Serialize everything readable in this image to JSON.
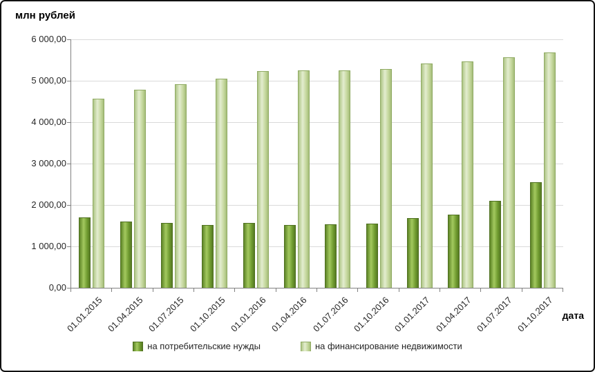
{
  "chart_data": {
    "type": "bar",
    "title": "",
    "ylabel": "млн рублей",
    "xlabel": "дата",
    "categories": [
      "01.01.2015",
      "01.04.2015",
      "01.07.2015",
      "01.10.2015",
      "01.01.2016",
      "01.04.2016",
      "01.07.2016",
      "01.10.2016",
      "01.01.2017",
      "01.04.2017",
      "01.07.2017",
      "01.10.2017"
    ],
    "series": [
      {
        "name": "на потребительские нужды",
        "color": "#76a033",
        "border_color": "#4e701f",
        "values": [
          1700,
          1600,
          1560,
          1520,
          1570,
          1520,
          1540,
          1550,
          1680,
          1770,
          2100,
          2550
        ]
      },
      {
        "name": "на финансирование недвижимости",
        "color": "#c3d69b",
        "border_color": "#8faa62",
        "values": [
          4570,
          4780,
          4920,
          5050,
          5230,
          5250,
          5250,
          5290,
          5420,
          5470,
          5570,
          5690
        ]
      }
    ],
    "ylim": [
      0,
      6000
    ],
    "ytick_values": [
      0,
      1000,
      2000,
      3000,
      4000,
      5000,
      6000
    ],
    "ytick_labels": [
      "0,00",
      "1 000,00",
      "2 000,00",
      "3 000,00",
      "4 000,00",
      "5 000,00",
      "6 000,00"
    ],
    "grid": true,
    "legend_position": "bottom",
    "axis_color": "#808080",
    "gridline_color": "#d9d9d9"
  }
}
